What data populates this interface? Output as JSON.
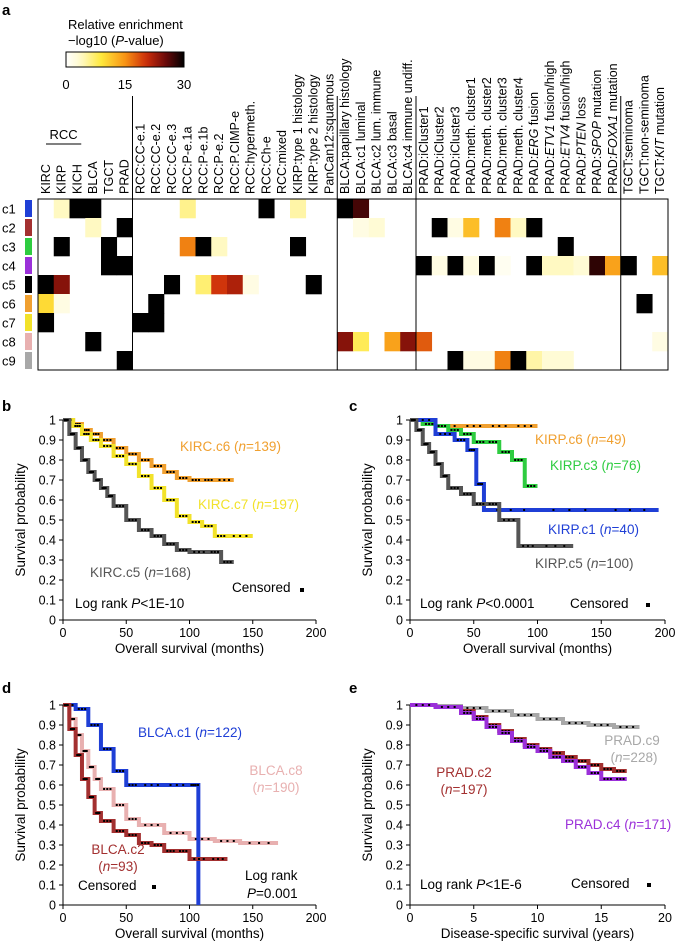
{
  "panel_letters": [
    "a",
    "b",
    "c",
    "d",
    "e"
  ],
  "chart_data": [
    {
      "type": "heatmap",
      "panel": "a",
      "legend": {
        "title_line1": "Relative enrichment",
        "title_line2": "−log10 (P-value)",
        "ticks": [
          "0",
          "15",
          "30"
        ],
        "range": [
          0,
          30
        ]
      },
      "rcc_group_label": "RCC",
      "rows": [
        "c1",
        "c2",
        "c3",
        "c4",
        "c5",
        "c6",
        "c7",
        "c8",
        "c9"
      ],
      "row_colors": [
        "#1f3fd6",
        "#a33030",
        "#2ecc40",
        "#9b30d9",
        "#000000",
        "#f0a030",
        "#f2e22a",
        "#e8b0b0",
        "#a8a8a8"
      ],
      "columns": [
        "KIRC",
        "KIRP",
        "KICH",
        "BLCA",
        "TGCT",
        "PRAD",
        "RCC:CC-e.1",
        "RCC:CC-e.2",
        "RCC:CC-e.3",
        "RCC:P-e.1a",
        "RCC:P-e.1b",
        "RCC:P-e.2",
        "RCC:P.CIMP-e",
        "RCC:hypermeth.",
        "RCC:Ch-e",
        "RCC:mixed",
        "KIRP:type 1 histology",
        "KIRP:type 2 histology",
        "PanCan12:squamous",
        "BLCA:papillary histology",
        "BLCA:c1 luminal",
        "BLCA:c2 lum. immune",
        "BLCA:c3 basal",
        "BLCA:c4 immune undiff.",
        "PRAD:iCluster1",
        "PRAD:iCluster2",
        "PRAD:iCluster3",
        "PRAD:meth. cluster1",
        "PRAD:meth. cluster2",
        "PRAD:meth. cluster3",
        "PRAD:meth. cluster4",
        "PRAD:ERG fusion",
        "PRAD:ETV1 fusion/high",
        "PRAD:ETV4 fusion/high",
        "PRAD:PTEN loss",
        "PRAD:SPOP mutation",
        "PRAD:FOXA1 mutation",
        "TGCT:seminoma",
        "TGCT:non-seminoma",
        "TGCT:KIT mutation"
      ],
      "group_separators_after_column": [
        5,
        18,
        23,
        36
      ],
      "values": [
        [
          0,
          4,
          30,
          30,
          0,
          0,
          0,
          0,
          0,
          6,
          0,
          0,
          0,
          0,
          30,
          0,
          5,
          0,
          0,
          30,
          27,
          0,
          0,
          0,
          0,
          0,
          0,
          0,
          0,
          0,
          0,
          0,
          0,
          0,
          0,
          0,
          0,
          0,
          0,
          0
        ],
        [
          0,
          0,
          0,
          4,
          0,
          30,
          0,
          0,
          0,
          0,
          0,
          0,
          0,
          0,
          0,
          0,
          0,
          0,
          0,
          0,
          2,
          3,
          0,
          0,
          0,
          30,
          2,
          12,
          0,
          16,
          4,
          30,
          0,
          0,
          0,
          0,
          0,
          0,
          0,
          0
        ],
        [
          0,
          30,
          0,
          0,
          30,
          0,
          0,
          0,
          0,
          16,
          30,
          4,
          0,
          0,
          0,
          0,
          30,
          0,
          0,
          0,
          0,
          0,
          0,
          0,
          0,
          0,
          0,
          0,
          0,
          0,
          0,
          0,
          0,
          30,
          0,
          0,
          0,
          0,
          0,
          0
        ],
        [
          0,
          0,
          0,
          0,
          30,
          30,
          0,
          0,
          0,
          0,
          0,
          0,
          0,
          0,
          0,
          0,
          0,
          0,
          0,
          0,
          0,
          0,
          0,
          0,
          30,
          2,
          30,
          2,
          30,
          1,
          0,
          30,
          4,
          4,
          3,
          28,
          14,
          30,
          0,
          12
        ],
        [
          30,
          24,
          0,
          0,
          0,
          0,
          0,
          0,
          30,
          0,
          7,
          20,
          22,
          2,
          0,
          0,
          0,
          30,
          0,
          0,
          0,
          0,
          0,
          0,
          0,
          0,
          0,
          0,
          0,
          0,
          0,
          0,
          0,
          0,
          0,
          0,
          0,
          0,
          0,
          0
        ],
        [
          10,
          2,
          0,
          0,
          0,
          0,
          0,
          30,
          0,
          0,
          0,
          0,
          0,
          0,
          0,
          0,
          0,
          0,
          0,
          0,
          0,
          0,
          0,
          0,
          0,
          0,
          0,
          0,
          0,
          0,
          0,
          0,
          0,
          0,
          0,
          0,
          0,
          0,
          30,
          0
        ],
        [
          30,
          0,
          0,
          0,
          0,
          0,
          30,
          30,
          0,
          0,
          0,
          0,
          0,
          0,
          0,
          0,
          0,
          0,
          0,
          0,
          0,
          0,
          0,
          0,
          0,
          0,
          0,
          0,
          0,
          0,
          0,
          0,
          0,
          0,
          0,
          0,
          0,
          0,
          0,
          0
        ],
        [
          0,
          0,
          0,
          30,
          0,
          0,
          0,
          0,
          0,
          0,
          0,
          0,
          0,
          0,
          0,
          0,
          0,
          0,
          0,
          24,
          8,
          0,
          14,
          24,
          18,
          0,
          0,
          0,
          0,
          0,
          0,
          0,
          0,
          0,
          0,
          0,
          0,
          0,
          0,
          2
        ],
        [
          0,
          0,
          0,
          0,
          0,
          30,
          0,
          0,
          0,
          0,
          0,
          0,
          0,
          0,
          0,
          0,
          0,
          0,
          0,
          0,
          0,
          0,
          0,
          0,
          0,
          0,
          30,
          2,
          2,
          16,
          30,
          5,
          3,
          3,
          0,
          0,
          0,
          0,
          0,
          0
        ]
      ]
    },
    {
      "type": "line",
      "panel": "b",
      "ylabel": "Survival probability",
      "xlabel": "Overall survival (months)",
      "xlim": [
        0,
        200
      ],
      "ylim": [
        0,
        1
      ],
      "xticks": [
        0,
        50,
        100,
        150,
        200
      ],
      "yticks": [
        0,
        0.1,
        0.2,
        0.3,
        0.4,
        0.5,
        0.6,
        0.7,
        0.8,
        0.9,
        1
      ],
      "series": [
        {
          "name": "KIRC.c6",
          "n": "n=139",
          "color": "#f0a030",
          "x": [
            0,
            8,
            15,
            22,
            30,
            40,
            50,
            60,
            70,
            80,
            90,
            100,
            110,
            120,
            135
          ],
          "y": [
            1,
            0.98,
            0.95,
            0.93,
            0.9,
            0.86,
            0.83,
            0.8,
            0.77,
            0.74,
            0.71,
            0.7,
            0.7,
            0.7,
            0.7
          ]
        },
        {
          "name": "KIRC.c7",
          "n": "n=197",
          "color": "#f2e22a",
          "x": [
            0,
            8,
            15,
            22,
            30,
            40,
            50,
            60,
            70,
            80,
            90,
            100,
            110,
            120,
            130,
            150
          ],
          "y": [
            1,
            0.97,
            0.93,
            0.9,
            0.87,
            0.82,
            0.78,
            0.72,
            0.66,
            0.6,
            0.52,
            0.49,
            0.47,
            0.42,
            0.42,
            0.42
          ]
        },
        {
          "name": "KIRC.c5",
          "n": "n=168",
          "color": "#555555",
          "x": [
            0,
            5,
            10,
            15,
            20,
            25,
            30,
            35,
            40,
            50,
            60,
            70,
            80,
            90,
            100,
            115,
            125,
            135
          ],
          "y": [
            1,
            0.93,
            0.86,
            0.8,
            0.74,
            0.7,
            0.66,
            0.62,
            0.57,
            0.5,
            0.45,
            0.42,
            0.38,
            0.35,
            0.34,
            0.34,
            0.29,
            0.29
          ]
        }
      ],
      "annotation": "Log rank P<1E-10",
      "censored_label": "Censored"
    },
    {
      "type": "line",
      "panel": "c",
      "ylabel": "Survival probability",
      "xlabel": "Overall survival (months)",
      "xlim": [
        0,
        200
      ],
      "ylim": [
        0,
        1
      ],
      "xticks": [
        0,
        50,
        100,
        150,
        200
      ],
      "yticks": [
        0,
        0.1,
        0.2,
        0.3,
        0.4,
        0.5,
        0.6,
        0.7,
        0.8,
        0.9,
        1
      ],
      "series": [
        {
          "name": "KIRP.c6",
          "n": "n=49",
          "color": "#f0a030",
          "x": [
            0,
            10,
            20,
            40,
            60,
            80,
            100
          ],
          "y": [
            1,
            0.98,
            0.97,
            0.97,
            0.97,
            0.97,
            0.97
          ]
        },
        {
          "name": "KIRP.c3",
          "n": "n=76",
          "color": "#2ecc40",
          "x": [
            0,
            10,
            20,
            30,
            40,
            50,
            60,
            70,
            80,
            90,
            100
          ],
          "y": [
            1,
            0.98,
            0.97,
            0.95,
            0.93,
            0.89,
            0.89,
            0.84,
            0.8,
            0.67,
            0.67
          ]
        },
        {
          "name": "KIRP.c1",
          "n": "n=40",
          "color": "#1f3fd6",
          "x": [
            0,
            20,
            35,
            45,
            52,
            58,
            100,
            150,
            195
          ],
          "y": [
            1,
            0.93,
            0.9,
            0.85,
            0.68,
            0.55,
            0.55,
            0.55,
            0.55
          ]
        },
        {
          "name": "KIRP.c5",
          "n": "n=100",
          "color": "#555555",
          "x": [
            0,
            5,
            10,
            15,
            20,
            25,
            30,
            40,
            50,
            60,
            70,
            85,
            100,
            128
          ],
          "y": [
            1,
            0.95,
            0.88,
            0.84,
            0.78,
            0.72,
            0.66,
            0.63,
            0.58,
            0.58,
            0.5,
            0.37,
            0.37,
            0.37
          ]
        }
      ],
      "annotation": "Log rank P<0.0001",
      "censored_label": "Censored"
    },
    {
      "type": "line",
      "panel": "d",
      "ylabel": "Survival probability",
      "xlabel": "Overall survival (months)",
      "xlim": [
        0,
        200
      ],
      "ylim": [
        0,
        1
      ],
      "xticks": [
        0,
        50,
        100,
        150,
        200
      ],
      "yticks": [
        0,
        0.1,
        0.2,
        0.3,
        0.4,
        0.5,
        0.6,
        0.7,
        0.8,
        0.9,
        1
      ],
      "series": [
        {
          "name": "BLCA.c8",
          "n": "n=190",
          "color": "#e8b0b0",
          "x": [
            0,
            5,
            10,
            15,
            20,
            25,
            30,
            40,
            50,
            60,
            80,
            100,
            120,
            140,
            170
          ],
          "y": [
            1,
            0.93,
            0.85,
            0.77,
            0.69,
            0.63,
            0.58,
            0.5,
            0.43,
            0.4,
            0.36,
            0.33,
            0.32,
            0.31,
            0.31
          ]
        },
        {
          "name": "BLCA.c1",
          "n": "n=122",
          "color": "#1f3fd6",
          "x": [
            0,
            10,
            20,
            30,
            40,
            50,
            60,
            80,
            100,
            106,
            107
          ],
          "y": [
            1,
            0.98,
            0.9,
            0.78,
            0.67,
            0.6,
            0.6,
            0.6,
            0.6,
            0.6,
            0
          ]
        },
        {
          "name": "BLCA.c2",
          "n": "n=93",
          "color": "#a33030",
          "x": [
            0,
            5,
            10,
            15,
            20,
            25,
            30,
            40,
            50,
            60,
            70,
            80,
            90,
            100,
            115,
            130
          ],
          "y": [
            1,
            0.88,
            0.75,
            0.63,
            0.54,
            0.46,
            0.42,
            0.37,
            0.35,
            0.31,
            0.3,
            0.27,
            0.27,
            0.23,
            0.23,
            0.23
          ]
        }
      ],
      "annotation_line1": "Log rank",
      "annotation_line2": "P=0.001",
      "censored_label": "Censored"
    },
    {
      "type": "line",
      "panel": "e",
      "ylabel": "Survival probability",
      "xlabel": "Disease-specific survival (years)",
      "xlim": [
        0,
        20
      ],
      "ylim": [
        0,
        1
      ],
      "xticks": [
        0,
        5,
        10,
        15,
        20
      ],
      "yticks": [
        0,
        0.1,
        0.2,
        0.3,
        0.4,
        0.5,
        0.6,
        0.7,
        0.8,
        0.9,
        1
      ],
      "series": [
        {
          "name": "PRAD.c9",
          "n": "n=228",
          "color": "#a8a8a8",
          "x": [
            0,
            2,
            4,
            6,
            8,
            10,
            12,
            14,
            16,
            18
          ],
          "y": [
            1,
            0.995,
            0.985,
            0.97,
            0.95,
            0.93,
            0.91,
            0.9,
            0.89,
            0.89
          ]
        },
        {
          "name": "PRAD.c2",
          "n": "n=197",
          "color": "#a33030",
          "x": [
            0,
            2,
            4,
            5,
            6,
            7,
            8,
            9,
            10,
            11,
            12,
            13,
            14,
            15,
            16,
            17
          ],
          "y": [
            1,
            0.99,
            0.97,
            0.94,
            0.9,
            0.87,
            0.83,
            0.8,
            0.78,
            0.76,
            0.74,
            0.72,
            0.7,
            0.68,
            0.67,
            0.67
          ]
        },
        {
          "name": "PRAD.c4",
          "n": "n=171",
          "color": "#9b30d9",
          "x": [
            0,
            2,
            4,
            5,
            6,
            7,
            8,
            9,
            10,
            11,
            12,
            13,
            14,
            15,
            16,
            17
          ],
          "y": [
            1,
            0.99,
            0.96,
            0.93,
            0.89,
            0.86,
            0.82,
            0.79,
            0.77,
            0.74,
            0.72,
            0.69,
            0.66,
            0.63,
            0.63,
            0.63
          ]
        }
      ],
      "annotation": "Log rank P<1E-6",
      "censored_label": "Censored"
    }
  ]
}
